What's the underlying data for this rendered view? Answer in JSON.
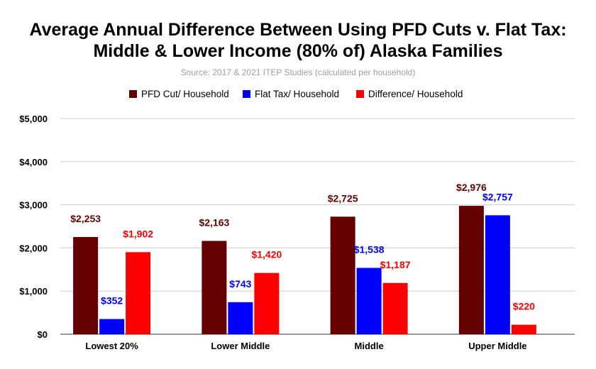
{
  "chart_data": {
    "type": "bar",
    "title_lines": [
      "Average Annual Difference Between Using PFD Cuts v. Flat Tax:",
      "Middle & Lower Income (80% of) Alaska Families"
    ],
    "subtitle": "Source: 2017 & 2021 ITEP Studies (calculated per household)",
    "categories": [
      "Lowest 20%",
      "Lower Middle",
      "Middle",
      "Upper Middle"
    ],
    "series": [
      {
        "name": "PFD Cut/ Household",
        "color": "#660000",
        "values": [
          2253,
          2163,
          2725,
          2976
        ],
        "labels": [
          "$2,253",
          "$2,163",
          "$2,725",
          "$2,976"
        ]
      },
      {
        "name": "Flat Tax/ Household",
        "color": "#0000ff",
        "values": [
          352,
          743,
          1538,
          2757
        ],
        "labels": [
          "$352",
          "$743",
          "$1,538",
          "$2,757"
        ]
      },
      {
        "name": "Difference/ Household",
        "color": "#ff0000",
        "values": [
          1902,
          1420,
          1187,
          220
        ],
        "labels": [
          "$1,902",
          "$1,420",
          "$1,187",
          "$220"
        ]
      }
    ],
    "ylim": [
      0,
      5000
    ],
    "yticks": [
      0,
      1000,
      2000,
      3000,
      4000,
      5000
    ],
    "ytick_labels": [
      "$0",
      "$1,000",
      "$2,000",
      "$3,000",
      "$4,000",
      "$5,000"
    ],
    "grid": true,
    "legend_position": "top",
    "xlabel": "",
    "ylabel": ""
  }
}
